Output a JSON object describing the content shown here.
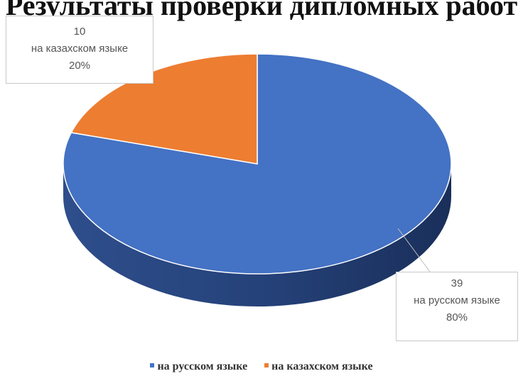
{
  "title": "Результаты проверки дипломных работ",
  "chart_data": {
    "type": "pie",
    "title": "Результаты проверки дипломных работ",
    "categories": [
      "на русском языке",
      "на казахском языке"
    ],
    "values": [
      39,
      10
    ],
    "percent_labels": [
      "80%",
      "20%"
    ],
    "colors": [
      "#4472C4",
      "#ED7D31"
    ],
    "legend_position": "bottom",
    "style": "3d"
  }
}
